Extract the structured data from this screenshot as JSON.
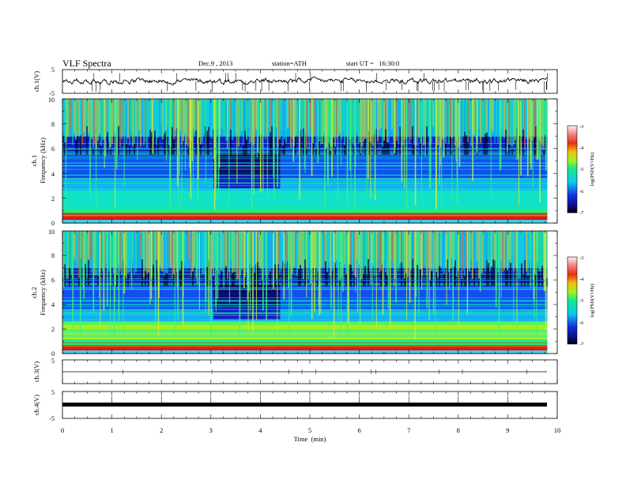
{
  "header": {
    "title": "VLF Spectra",
    "date": "Dec.9 , 2013",
    "station": "station=ATH",
    "start_time": "start UT =   16:30:0"
  },
  "chart_data": [
    {
      "type": "line",
      "panel": "ch1-waveform",
      "ylabel": "ch.1(V)",
      "ylim": [
        -5,
        5
      ],
      "yticks": [
        "5",
        "-5"
      ],
      "baseline": 0,
      "xlim": [
        0,
        10
      ]
    },
    {
      "type": "heatmap",
      "panel": "ch1-spectrogram",
      "ylabel": "ch.1\nFrequency (kHz)",
      "ylim": [
        0,
        10
      ],
      "yticks": [
        "0",
        "2",
        "4",
        "6",
        "8",
        "10"
      ],
      "xlim": [
        0,
        10
      ],
      "data_end_min": 9.8,
      "event_window_min": [
        3.05,
        4.4
      ],
      "colorbar": {
        "label": "log(PSD(V²/Hz)",
        "range": [
          -7,
          -3
        ],
        "ticks": [
          "-3",
          "-4",
          "-5",
          "-6",
          "-7"
        ]
      }
    },
    {
      "type": "heatmap",
      "panel": "ch2-spectrogram",
      "ylabel": "ch.2\nFrequency (kHz)",
      "ylim": [
        0,
        10
      ],
      "yticks": [
        "0",
        "2",
        "4",
        "6",
        "8",
        "10"
      ],
      "xlim": [
        0,
        10
      ],
      "data_end_min": 9.8,
      "event_window_min": [
        3.05,
        4.4
      ],
      "colorbar": {
        "label": "log(PSD(V²/Hz)",
        "range": [
          -7,
          -3
        ],
        "ticks": [
          "-3",
          "-4",
          "-5",
          "-6",
          "-7"
        ]
      }
    },
    {
      "type": "line",
      "panel": "ch3-waveform",
      "ylabel": "ch.3(V)",
      "ylim": [
        -5,
        5
      ],
      "yticks": [
        "5"
      ],
      "baseline": 0,
      "xlim": [
        0,
        10
      ]
    },
    {
      "type": "line",
      "panel": "ch4-waveform",
      "ylabel": "ch.4(V)",
      "ylim": [
        -5,
        5
      ],
      "yticks": [
        "5",
        "-5"
      ],
      "baseline": 0,
      "xlim": [
        0,
        10
      ]
    }
  ],
  "xaxis": {
    "label": "Time  (min)",
    "ticks": [
      "0",
      "1",
      "2",
      "3",
      "4",
      "5",
      "6",
      "7",
      "8",
      "9",
      "10"
    ]
  }
}
